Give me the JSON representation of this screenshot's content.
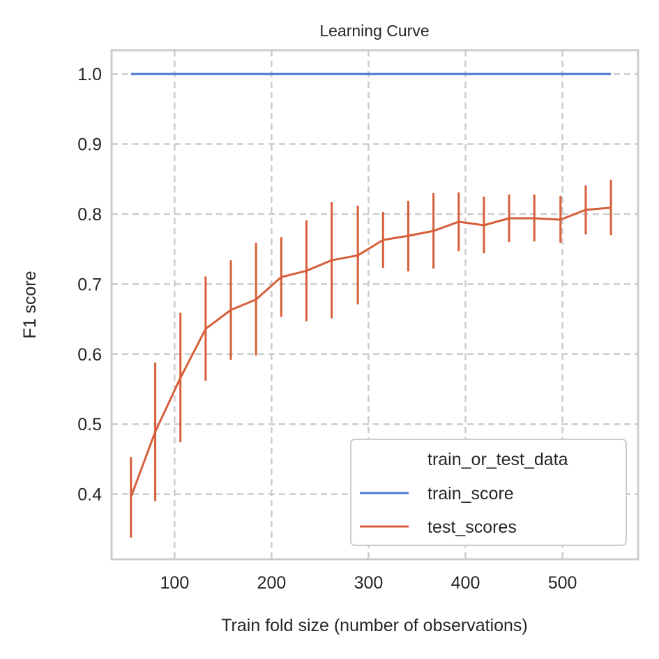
{
  "chart_data": {
    "type": "line",
    "title": "Learning Curve",
    "xlabel": "Train fold size (number of observations)",
    "ylabel": "F1 score",
    "xlim": [
      35,
      578
    ],
    "ylim": [
      0.307,
      1.034
    ],
    "xticks": [
      100,
      200,
      300,
      400,
      500
    ],
    "yticks": [
      0.4,
      0.5,
      0.6,
      0.7,
      0.8,
      0.9,
      1.0
    ],
    "xtick_labels": [
      "100",
      "200",
      "300",
      "400",
      "500"
    ],
    "ytick_labels": [
      "0.4",
      "0.5",
      "0.6",
      "0.7",
      "0.8",
      "0.9",
      "1.0"
    ],
    "grid": true,
    "grid_style": "dashed",
    "legend": {
      "title": "train_or_test_data",
      "placement": "lower-right"
    },
    "series": [
      {
        "name": "train_score",
        "color": "#4878d0",
        "x": [
          55,
          80,
          106,
          132,
          158,
          184,
          210,
          236,
          262,
          289,
          315,
          341,
          367,
          393,
          419,
          445,
          471,
          498,
          524,
          550
        ],
        "y": [
          1.0,
          1.0,
          1.0,
          1.0,
          1.0,
          1.0,
          1.0,
          1.0,
          1.0,
          1.0,
          1.0,
          1.0,
          1.0,
          1.0,
          1.0,
          1.0,
          1.0,
          1.0,
          1.0,
          1.0
        ]
      },
      {
        "name": "test_scores",
        "color": "#d65f3a",
        "x": [
          55,
          80,
          106,
          132,
          158,
          184,
          210,
          236,
          262,
          289,
          315,
          341,
          367,
          393,
          419,
          445,
          471,
          498,
          524,
          550
        ],
        "y": [
          0.396,
          0.489,
          0.566,
          0.636,
          0.663,
          0.678,
          0.71,
          0.719,
          0.734,
          0.741,
          0.763,
          0.769,
          0.776,
          0.789,
          0.784,
          0.794,
          0.794,
          0.792,
          0.806,
          0.809
        ],
        "error_low": [
          0.338,
          0.39,
          0.474,
          0.562,
          0.592,
          0.598,
          0.653,
          0.647,
          0.651,
          0.671,
          0.723,
          0.718,
          0.722,
          0.747,
          0.744,
          0.76,
          0.761,
          0.759,
          0.771,
          0.77
        ],
        "error_high": [
          0.453,
          0.588,
          0.659,
          0.711,
          0.734,
          0.759,
          0.767,
          0.791,
          0.817,
          0.812,
          0.803,
          0.819,
          0.83,
          0.831,
          0.825,
          0.828,
          0.828,
          0.826,
          0.841,
          0.849
        ]
      }
    ]
  }
}
